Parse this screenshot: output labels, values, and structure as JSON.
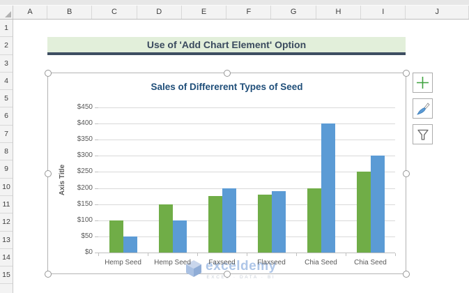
{
  "spreadsheet": {
    "column_headers": [
      "A",
      "B",
      "C",
      "D",
      "E",
      "F",
      "G",
      "H",
      "I",
      "J"
    ],
    "row_headers": [
      "1",
      "2",
      "3",
      "4",
      "5",
      "6",
      "7",
      "8",
      "9",
      "10",
      "11",
      "12",
      "13",
      "14",
      "15"
    ]
  },
  "banner": {
    "title": "Use of 'Add Chart Element' Option",
    "bg_color": "#E2EFDA",
    "underline_color": "#3E4E62"
  },
  "chart_side_buttons": [
    {
      "icon": "plus-icon",
      "purpose": "chart-elements"
    },
    {
      "icon": "brush-icon",
      "purpose": "chart-styles"
    },
    {
      "icon": "funnel-icon",
      "purpose": "chart-filters"
    }
  ],
  "chart_data": {
    "type": "bar",
    "title": "Sales of Differerent Types of Seed",
    "ylabel": "Axis Title",
    "xlabel": "",
    "categories": [
      "Hemp Seed",
      "Hemp Seed",
      "Faxseed",
      "Flaxseed",
      "Chia Seed",
      "Chia Seed"
    ],
    "series": [
      {
        "color": "#70AD47",
        "values": [
          100,
          150,
          175,
          180,
          200,
          250
        ]
      },
      {
        "color": "#5B9BD5",
        "values": [
          50,
          100,
          200,
          190,
          400,
          300
        ]
      }
    ],
    "ylim": [
      0,
      450
    ],
    "ytick_step": 50,
    "yticks": [
      "$0",
      "$50",
      "$100",
      "$150",
      "$200",
      "$250",
      "$300",
      "$350",
      "$400",
      "$450"
    ],
    "grid": true,
    "legend": "none",
    "title_color": "#1F4E79",
    "axis_text_color": "#595959"
  },
  "watermark": {
    "brand": "exceldemy",
    "tagline": "EXCEL · DATA · BI"
  }
}
